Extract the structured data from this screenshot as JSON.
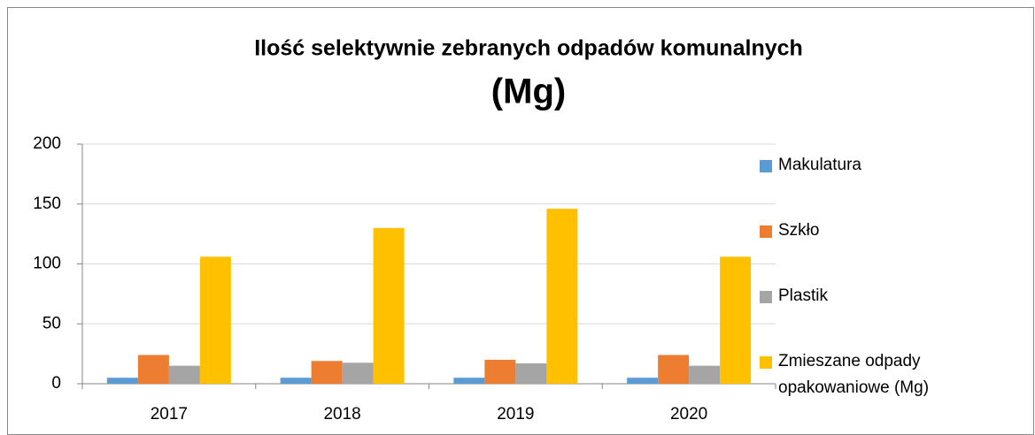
{
  "chart_data": {
    "type": "bar",
    "title": "Ilość selektywnie zebranych odpadów komunalnych",
    "subtitle": "(Mg)",
    "categories": [
      "2017",
      "2018",
      "2019",
      "2020"
    ],
    "series": [
      {
        "name": "Makulatura",
        "color": "#5b9bd5",
        "values": [
          5,
          5,
          5,
          5
        ]
      },
      {
        "name": "Szkło",
        "color": "#ed7d31",
        "values": [
          24,
          19,
          20,
          24
        ]
      },
      {
        "name": "Plastik",
        "color": "#a5a5a5",
        "values": [
          15,
          17.5,
          17,
          15
        ]
      },
      {
        "name": "Zmieszane odpady opakowaniowe (Mg)",
        "color": "#ffc000",
        "values": [
          106,
          130,
          146,
          106
        ]
      }
    ],
    "ylim": [
      0,
      200
    ],
    "yticks": [
      0,
      50,
      100,
      150,
      200
    ],
    "grid": true,
    "legend": "right"
  }
}
